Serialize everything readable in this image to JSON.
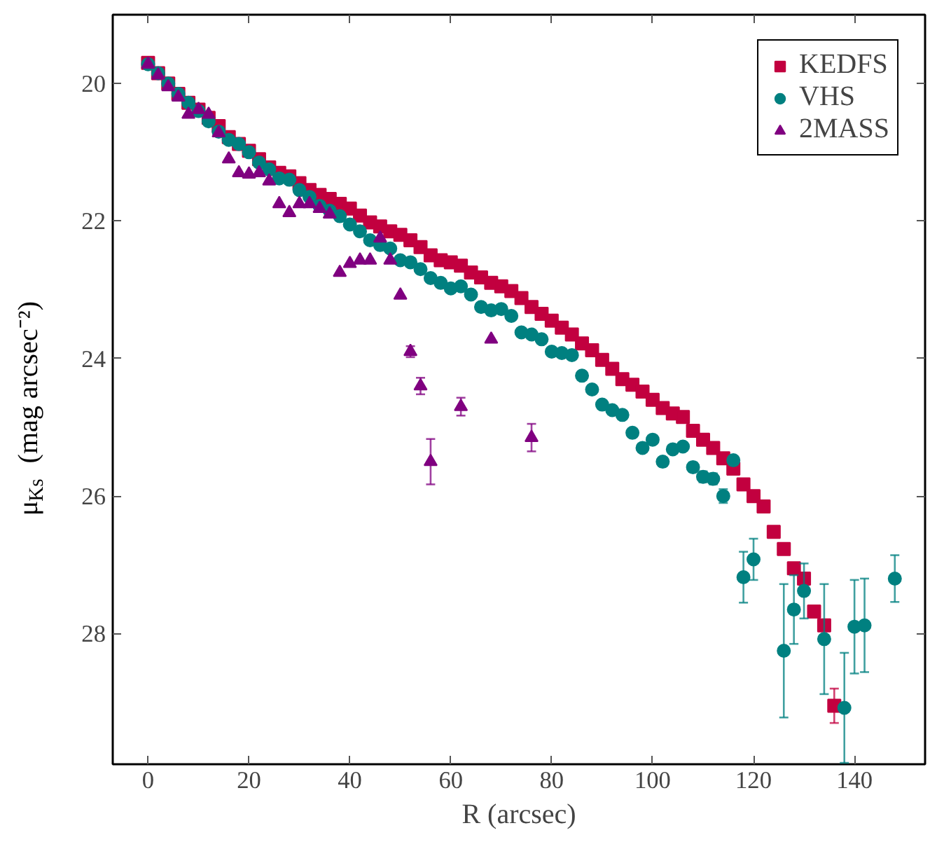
{
  "chart_data": {
    "type": "scatter",
    "xlabel": "R (arcsec)",
    "ylabel": "μ$_{Ks}$ (mag arcsec⁻²)",
    "xlim": [
      -7,
      154
    ],
    "ylim": [
      29.9,
      19.0
    ],
    "xticks": [
      0,
      20,
      40,
      60,
      80,
      100,
      120,
      140
    ],
    "yticks": [
      20,
      22,
      24,
      26,
      28
    ],
    "legend": "top right",
    "grid": false,
    "series": [
      {
        "name": "KEDFS",
        "color": "#c2003f",
        "marker": "square",
        "x": [
          0,
          2,
          4,
          6,
          8,
          10,
          12,
          14,
          16,
          18,
          20,
          22,
          24,
          26,
          28,
          30,
          32,
          34,
          36,
          38,
          40,
          42,
          44,
          46,
          48,
          50,
          52,
          54,
          56,
          58,
          60,
          62,
          64,
          66,
          68,
          70,
          72,
          74,
          76,
          78,
          80,
          82,
          84,
          86,
          88,
          90,
          92,
          94,
          96,
          98,
          100,
          102,
          104,
          106,
          108,
          110,
          112,
          114,
          116,
          118,
          120,
          122,
          124,
          126,
          128,
          130,
          132,
          134,
          136
        ],
        "values": [
          19.7,
          19.85,
          20.0,
          20.15,
          20.28,
          20.38,
          20.5,
          20.62,
          20.78,
          20.88,
          20.98,
          21.1,
          21.22,
          21.3,
          21.35,
          21.45,
          21.55,
          21.62,
          21.68,
          21.75,
          21.82,
          21.92,
          22.02,
          22.08,
          22.15,
          22.2,
          22.28,
          22.38,
          22.5,
          22.57,
          22.6,
          22.65,
          22.75,
          22.82,
          22.9,
          22.95,
          23.02,
          23.12,
          23.25,
          23.35,
          23.45,
          23.55,
          23.65,
          23.78,
          23.88,
          24.02,
          24.15,
          24.3,
          24.38,
          24.48,
          24.6,
          24.72,
          24.8,
          24.85,
          25.05,
          25.18,
          25.3,
          25.45,
          25.6,
          25.83,
          26.0,
          26.15,
          26.52,
          26.77,
          27.05,
          27.2,
          27.68,
          27.88,
          29.05
        ],
        "errors": [
          null,
          null,
          null,
          null,
          null,
          null,
          null,
          null,
          null,
          null,
          null,
          null,
          null,
          null,
          null,
          null,
          null,
          null,
          null,
          null,
          null,
          null,
          null,
          null,
          null,
          null,
          null,
          null,
          null,
          null,
          null,
          null,
          null,
          null,
          null,
          null,
          null,
          null,
          null,
          null,
          null,
          null,
          null,
          null,
          null,
          null,
          null,
          null,
          null,
          null,
          null,
          null,
          null,
          null,
          null,
          null,
          null,
          null,
          null,
          null,
          null,
          null,
          null,
          null,
          null,
          null,
          null,
          null,
          0.25
        ]
      },
      {
        "name": "VHS",
        "color": "#008080",
        "marker": "circle",
        "x": [
          0,
          2,
          4,
          6,
          8,
          10,
          12,
          14,
          16,
          18,
          20,
          22,
          24,
          26,
          28,
          30,
          32,
          34,
          36,
          38,
          40,
          42,
          44,
          46,
          48,
          50,
          52,
          54,
          56,
          58,
          60,
          62,
          64,
          66,
          68,
          70,
          72,
          74,
          76,
          78,
          80,
          82,
          84,
          86,
          88,
          90,
          92,
          94,
          96,
          98,
          100,
          102,
          104,
          106,
          108,
          110,
          112,
          114,
          116,
          118,
          120,
          126,
          128,
          130,
          134,
          138,
          140,
          142,
          148
        ],
        "values": [
          19.72,
          19.85,
          20.0,
          20.15,
          20.28,
          20.4,
          20.55,
          20.7,
          20.82,
          20.88,
          21.0,
          21.15,
          21.25,
          21.38,
          21.4,
          21.55,
          21.65,
          21.78,
          21.85,
          21.93,
          22.05,
          22.15,
          22.28,
          22.35,
          22.4,
          22.57,
          22.6,
          22.7,
          22.83,
          22.9,
          22.98,
          22.95,
          23.07,
          23.25,
          23.3,
          23.28,
          23.38,
          23.62,
          23.65,
          23.72,
          23.9,
          23.92,
          23.95,
          24.25,
          24.45,
          24.67,
          24.75,
          24.82,
          25.08,
          25.3,
          25.18,
          25.5,
          25.32,
          25.28,
          25.58,
          25.72,
          25.75,
          26.0,
          25.48,
          27.18,
          26.92,
          28.25,
          27.65,
          27.38,
          28.08,
          29.08,
          27.9,
          27.88,
          27.2
        ],
        "errors": [
          null,
          null,
          null,
          null,
          null,
          null,
          null,
          null,
          null,
          null,
          null,
          null,
          null,
          null,
          null,
          null,
          null,
          null,
          null,
          null,
          null,
          null,
          null,
          null,
          null,
          null,
          null,
          null,
          null,
          null,
          null,
          null,
          null,
          null,
          null,
          null,
          null,
          null,
          null,
          null,
          null,
          null,
          null,
          null,
          null,
          null,
          null,
          null,
          null,
          null,
          null,
          0.06,
          null,
          null,
          0.07,
          0.08,
          0.08,
          0.1,
          null,
          0.37,
          0.3,
          0.97,
          0.5,
          0.4,
          0.8,
          0.8,
          0.68,
          0.68,
          0.34
        ]
      },
      {
        "name": "2MASS",
        "color": "#800080",
        "marker": "triangle",
        "x": [
          0,
          2,
          4,
          6,
          8,
          10,
          12,
          14,
          16,
          18,
          20,
          22,
          24,
          26,
          28,
          30,
          32,
          34,
          36,
          38,
          40,
          42,
          44,
          46,
          48,
          50,
          52,
          54,
          56,
          62,
          68,
          76
        ],
        "values": [
          19.72,
          19.88,
          20.05,
          20.2,
          20.45,
          20.38,
          20.45,
          20.72,
          21.1,
          21.3,
          21.32,
          21.3,
          21.42,
          21.75,
          21.88,
          21.75,
          21.75,
          21.82,
          21.9,
          22.75,
          22.62,
          22.57,
          22.57,
          22.25,
          22.57,
          23.08,
          23.9,
          24.4,
          25.5,
          24.7,
          23.72,
          25.15
        ],
        "errors": [
          null,
          null,
          null,
          null,
          null,
          null,
          null,
          null,
          null,
          null,
          null,
          null,
          null,
          null,
          null,
          null,
          null,
          null,
          null,
          null,
          null,
          null,
          null,
          null,
          null,
          null,
          0.08,
          0.12,
          0.33,
          0.13,
          null,
          0.2
        ]
      }
    ]
  }
}
